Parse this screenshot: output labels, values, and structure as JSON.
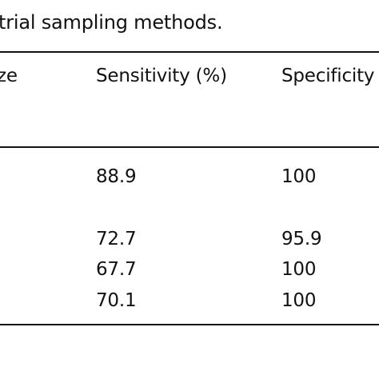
{
  "caption": "trial sampling methods.",
  "table": {
    "headers": {
      "size": "ze",
      "sensitivity": "Sensitivity (%)",
      "specificity": "Specificity"
    },
    "rows": [
      {
        "sensitivity": "88.9",
        "specificity": "100"
      },
      {
        "sensitivity": "72.7",
        "specificity": "95.9"
      },
      {
        "sensitivity": "67.7",
        "specificity": "100"
      },
      {
        "sensitivity": "70.1",
        "specificity": "100"
      }
    ]
  }
}
